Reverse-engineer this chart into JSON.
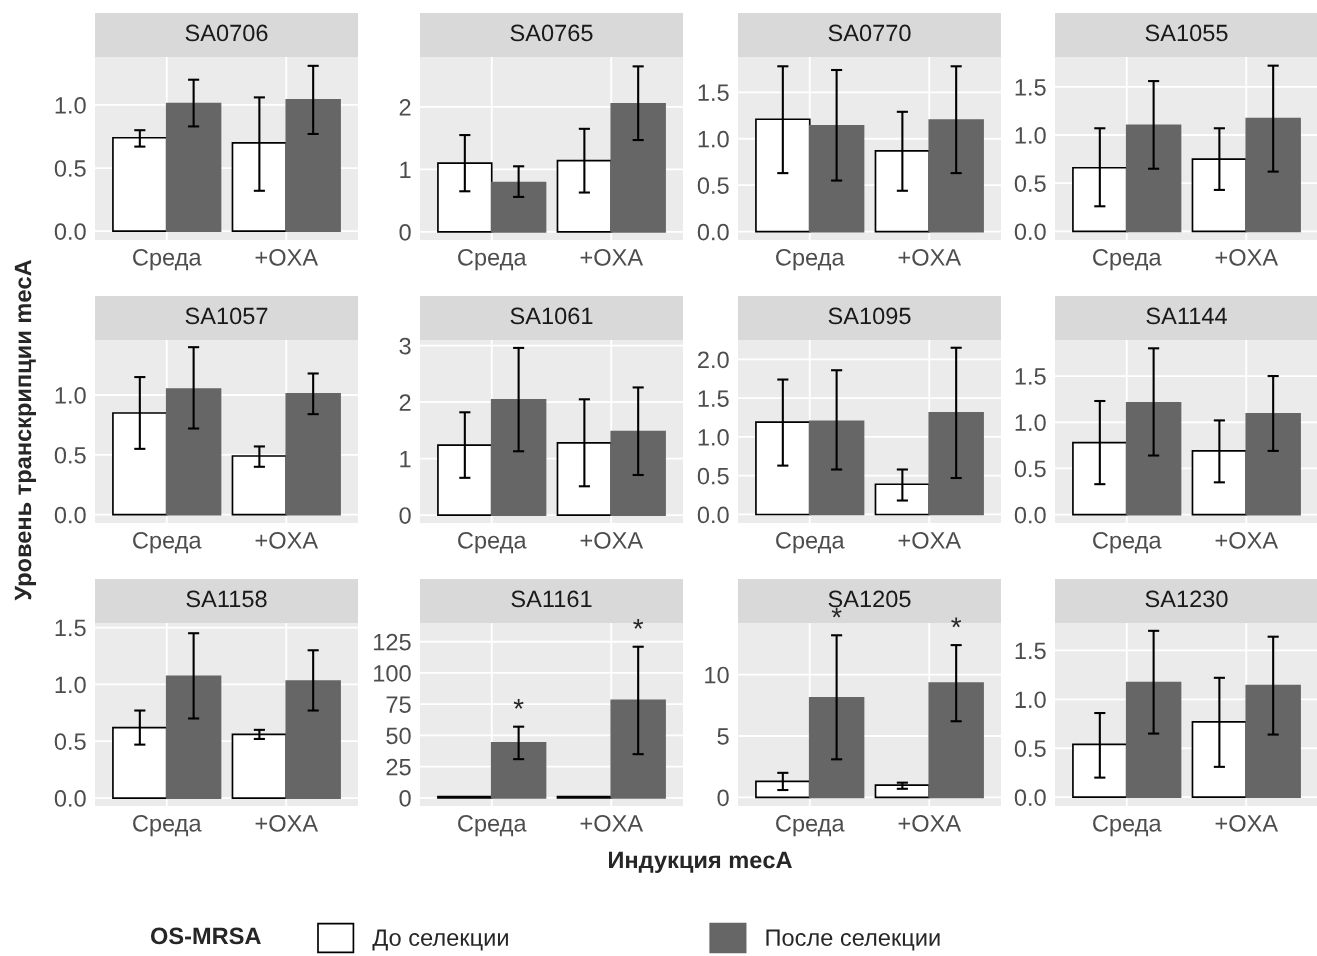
{
  "chart_data": [
    {
      "type": "bar",
      "title": "SA0706",
      "categories": [
        "Среда",
        "+OXA"
      ],
      "ylim": [
        -0.07,
        1.38
      ],
      "yticks": [
        {
          "value": 0,
          "label": "0.0"
        },
        {
          "value": 0.5,
          "label": "0.5"
        },
        {
          "value": 1,
          "label": "1.0"
        }
      ],
      "grid": true,
      "series": [
        {
          "color": "#ffffff",
          "values": [
            0.74,
            0.7
          ],
          "errors": [
            [
              0.67,
              0.8
            ],
            [
              0.32,
              1.06
            ]
          ]
        },
        {
          "color": "#666666",
          "values": [
            1.01,
            1.04
          ],
          "errors": [
            [
              0.83,
              1.2
            ],
            [
              0.77,
              1.31
            ]
          ]
        }
      ]
    },
    {
      "type": "bar",
      "title": "SA0765",
      "categories": [
        "Среда",
        "+OXA"
      ],
      "ylim": [
        -0.13,
        2.8
      ],
      "yticks": [
        0,
        1,
        2
      ],
      "grid": true,
      "series": [
        {
          "color": "#ffffff",
          "values": [
            1.1,
            1.14
          ],
          "errors": [
            [
              0.65,
              1.55
            ],
            [
              0.63,
              1.65
            ]
          ]
        },
        {
          "color": "#666666",
          "values": [
            0.79,
            2.05
          ],
          "errors": [
            [
              0.56,
              1.05
            ],
            [
              1.47,
              2.65
            ]
          ]
        }
      ]
    },
    {
      "type": "bar",
      "title": "SA0770",
      "categories": [
        "Среда",
        "+OXA"
      ],
      "ylim": [
        -0.09,
        1.88
      ],
      "yticks": [
        {
          "value": 0,
          "label": "0.0"
        },
        {
          "value": 0.5,
          "label": "0.5"
        },
        {
          "value": 1,
          "label": "1.0"
        },
        {
          "value": 1.5,
          "label": "1.5"
        }
      ],
      "grid": true,
      "series": [
        {
          "color": "#ffffff",
          "values": [
            1.21,
            0.87
          ],
          "errors": [
            [
              0.63,
              1.78
            ],
            [
              0.44,
              1.29
            ]
          ]
        },
        {
          "color": "#666666",
          "values": [
            1.14,
            1.2
          ],
          "errors": [
            [
              0.55,
              1.74
            ],
            [
              0.63,
              1.78
            ]
          ]
        }
      ]
    },
    {
      "type": "bar",
      "title": "SA1055",
      "categories": [
        "Среда",
        "+OXA"
      ],
      "ylim": [
        -0.09,
        1.81
      ],
      "yticks": [
        {
          "value": 0,
          "label": "0.0"
        },
        {
          "value": 0.5,
          "label": "0.5"
        },
        {
          "value": 1,
          "label": "1.0"
        },
        {
          "value": 1.5,
          "label": "1.5"
        }
      ],
      "grid": true,
      "series": [
        {
          "color": "#ffffff",
          "values": [
            0.66,
            0.75
          ],
          "errors": [
            [
              0.26,
              1.07
            ],
            [
              0.43,
              1.07
            ]
          ]
        },
        {
          "color": "#666666",
          "values": [
            1.1,
            1.17
          ],
          "errors": [
            [
              0.65,
              1.56
            ],
            [
              0.62,
              1.72
            ]
          ]
        }
      ]
    },
    {
      "type": "bar",
      "title": "SA1057",
      "ylabel": "Уровень транскрипции mecA",
      "categories": [
        "Среда",
        "+OXA"
      ],
      "ylim": [
        -0.07,
        1.46
      ],
      "yticks": [
        {
          "value": 0,
          "label": "0.0"
        },
        {
          "value": 0.5,
          "label": "0.5"
        },
        {
          "value": 1,
          "label": "1.0"
        }
      ],
      "grid": true,
      "series": [
        {
          "color": "#ffffff",
          "values": [
            0.85,
            0.49
          ],
          "errors": [
            [
              0.55,
              1.15
            ],
            [
              0.4,
              0.57
            ]
          ]
        },
        {
          "color": "#666666",
          "values": [
            1.05,
            1.01
          ],
          "errors": [
            [
              0.72,
              1.4
            ],
            [
              0.84,
              1.18
            ]
          ]
        }
      ]
    },
    {
      "type": "bar",
      "title": "SA1061",
      "categories": [
        "Среда",
        "+OXA"
      ],
      "ylim": [
        -0.14,
        3.1
      ],
      "yticks": [
        0,
        1,
        2,
        3
      ],
      "grid": true,
      "series": [
        {
          "color": "#ffffff",
          "values": [
            1.24,
            1.28
          ],
          "errors": [
            [
              0.66,
              1.82
            ],
            [
              0.51,
              2.05
            ]
          ]
        },
        {
          "color": "#666666",
          "values": [
            2.04,
            1.48
          ],
          "errors": [
            [
              1.13,
              2.96
            ],
            [
              0.71,
              2.26
            ]
          ]
        }
      ]
    },
    {
      "type": "bar",
      "title": "SA1095",
      "categories": [
        "Среда",
        "+OXA"
      ],
      "ylim": [
        -0.11,
        2.25
      ],
      "yticks": [
        {
          "value": 0,
          "label": "0.0"
        },
        {
          "value": 0.5,
          "label": "0.5"
        },
        {
          "value": 1,
          "label": "1.0"
        },
        {
          "value": 1.5,
          "label": "1.5"
        },
        {
          "value": 2,
          "label": "2.0"
        }
      ],
      "grid": true,
      "series": [
        {
          "color": "#ffffff",
          "values": [
            1.19,
            0.39
          ],
          "errors": [
            [
              0.63,
              1.74
            ],
            [
              0.18,
              0.58
            ]
          ]
        },
        {
          "color": "#666666",
          "values": [
            1.2,
            1.31
          ],
          "errors": [
            [
              0.58,
              1.86
            ],
            [
              0.47,
              2.15
            ]
          ]
        }
      ]
    },
    {
      "type": "bar",
      "title": "SA1144",
      "categories": [
        "Среда",
        "+OXA"
      ],
      "ylim": [
        -0.09,
        1.89
      ],
      "yticks": [
        {
          "value": 0,
          "label": "0.0"
        },
        {
          "value": 0.5,
          "label": "0.5"
        },
        {
          "value": 1,
          "label": "1.0"
        },
        {
          "value": 1.5,
          "label": "1.5"
        }
      ],
      "grid": true,
      "series": [
        {
          "color": "#ffffff",
          "values": [
            0.78,
            0.69
          ],
          "errors": [
            [
              0.33,
              1.23
            ],
            [
              0.35,
              1.02
            ]
          ]
        },
        {
          "color": "#666666",
          "values": [
            1.21,
            1.09
          ],
          "errors": [
            [
              0.64,
              1.8
            ],
            [
              0.69,
              1.5
            ]
          ]
        }
      ]
    },
    {
      "type": "bar",
      "title": "SA1158",
      "categories": [
        "Среда",
        "+OXA"
      ],
      "ylim": [
        -0.07,
        1.54
      ],
      "yticks": [
        {
          "value": 0,
          "label": "0.0"
        },
        {
          "value": 0.5,
          "label": "0.5"
        },
        {
          "value": 1,
          "label": "1.0"
        },
        {
          "value": 1.5,
          "label": "1.5"
        }
      ],
      "grid": true,
      "series": [
        {
          "color": "#ffffff",
          "values": [
            0.62,
            0.56
          ],
          "errors": [
            [
              0.47,
              0.77
            ],
            [
              0.52,
              0.6
            ]
          ]
        },
        {
          "color": "#666666",
          "values": [
            1.07,
            1.03
          ],
          "errors": [
            [
              0.7,
              1.45
            ],
            [
              0.77,
              1.3
            ]
          ]
        }
      ]
    },
    {
      "type": "bar",
      "title": "SA1161",
      "xlabel": "Индукция mecA",
      "legend_title": "OS-MRSA",
      "legend": "bottom",
      "categories": [
        "Среда",
        "+OXA"
      ],
      "ylim": [
        -6.5,
        140
      ],
      "yticks": [
        0,
        25,
        50,
        75,
        100,
        125
      ],
      "grid": true,
      "annotations": [
        "*",
        "*"
      ],
      "series": [
        {
          "name": "До селекции",
          "color": "#ffffff",
          "values": [
            1,
            1
          ],
          "errors": [
            null,
            null
          ]
        },
        {
          "name": "После селекции",
          "color": "#666666",
          "values": [
            44,
            78
          ],
          "errors": [
            [
              31,
              57
            ],
            [
              35,
              121
            ]
          ]
        }
      ]
    },
    {
      "type": "bar",
      "title": "SA1205",
      "categories": [
        "Среда",
        "+OXA"
      ],
      "ylim": [
        -0.7,
        14.2
      ],
      "yticks": [
        0,
        5,
        10
      ],
      "grid": true,
      "annotations": [
        "*",
        "*"
      ],
      "series": [
        {
          "color": "#ffffff",
          "values": [
            1.3,
            1.0
          ],
          "errors": [
            [
              0.6,
              2.0
            ],
            [
              0.7,
              1.2
            ]
          ]
        },
        {
          "color": "#666666",
          "values": [
            8.1,
            9.3
          ],
          "errors": [
            [
              3.1,
              13.2
            ],
            [
              6.2,
              12.4
            ]
          ]
        }
      ]
    },
    {
      "type": "bar",
      "title": "SA1230",
      "categories": [
        "Среда",
        "+OXA"
      ],
      "ylim": [
        -0.09,
        1.78
      ],
      "yticks": [
        {
          "value": 0,
          "label": "0.0"
        },
        {
          "value": 0.5,
          "label": "0.5"
        },
        {
          "value": 1,
          "label": "1.0"
        },
        {
          "value": 1.5,
          "label": "1.5"
        }
      ],
      "grid": true,
      "series": [
        {
          "color": "#ffffff",
          "values": [
            0.54,
            0.77
          ],
          "errors": [
            [
              0.2,
              0.86
            ],
            [
              0.31,
              1.22
            ]
          ]
        },
        {
          "color": "#666666",
          "values": [
            1.17,
            1.14
          ],
          "errors": [
            [
              0.65,
              1.7
            ],
            [
              0.64,
              1.64
            ]
          ]
        }
      ]
    }
  ]
}
